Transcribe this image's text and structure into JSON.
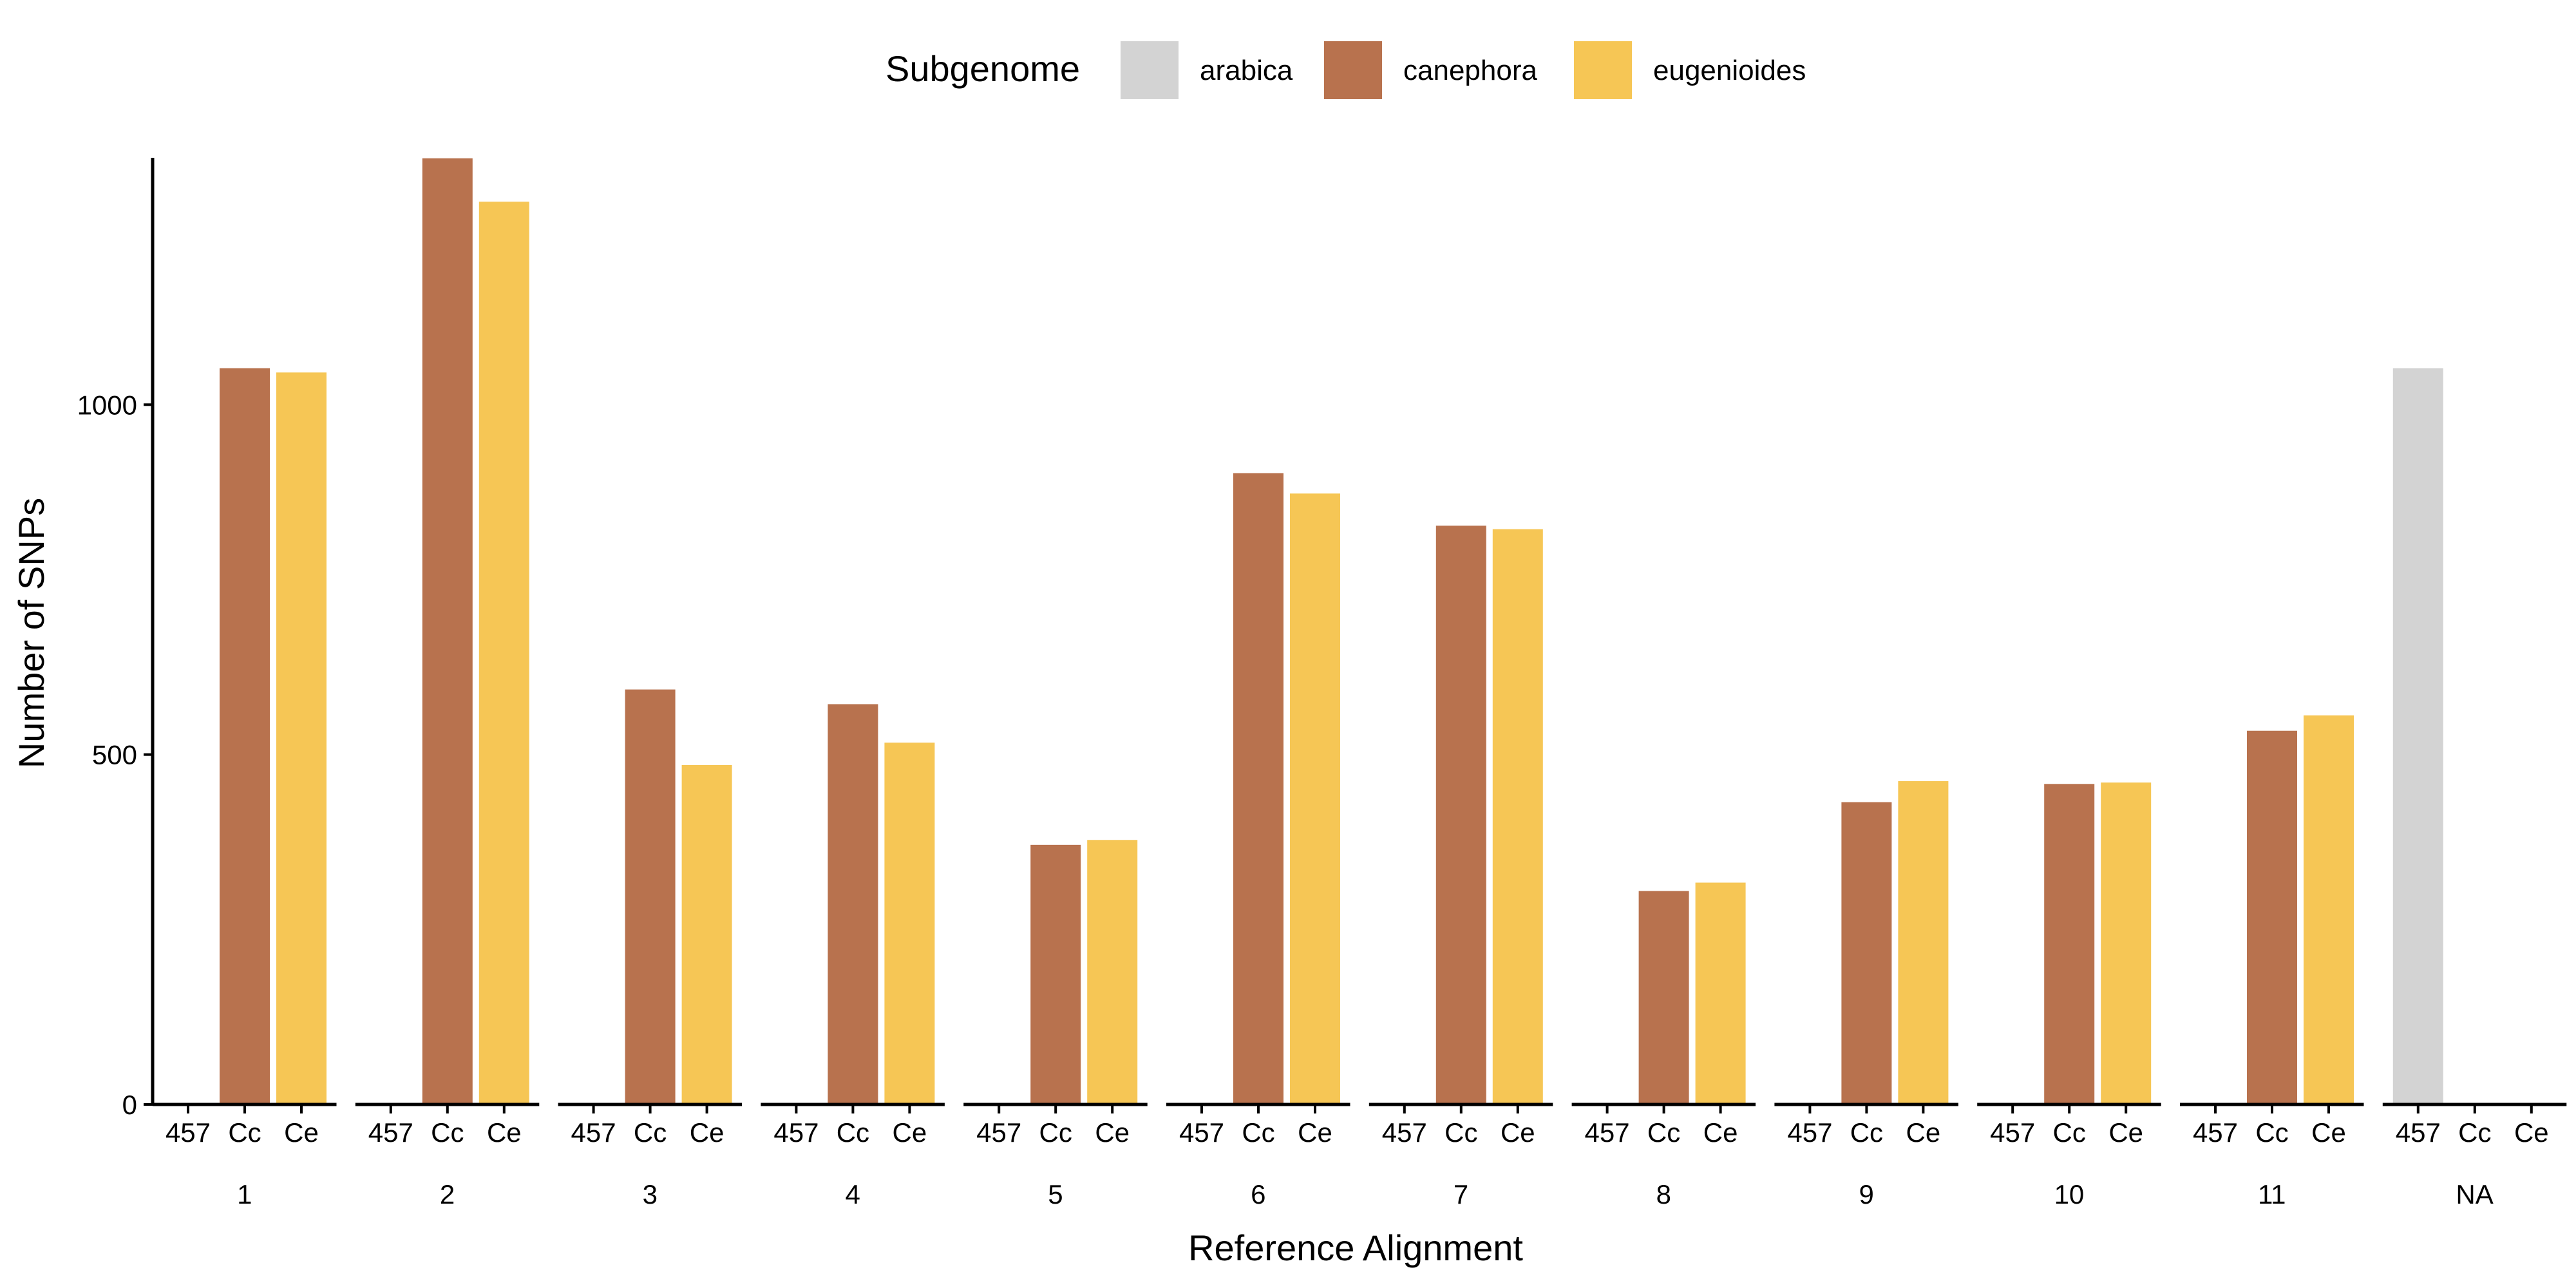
{
  "chart_data": {
    "type": "bar",
    "title": "",
    "xlabel": "Reference Alignment",
    "ylabel": "Number of SNPs",
    "ylim": [
      0,
      1350
    ],
    "yticks": [
      0,
      500,
      1000
    ],
    "grid": false,
    "legend": {
      "title": "Subgenome",
      "position": "top",
      "entries": [
        {
          "label": "arabica",
          "color": "#d3d3d3"
        },
        {
          "label": "canephora",
          "color": "#b8724e"
        },
        {
          "label": "eugenioides",
          "color": "#f6c655"
        }
      ]
    },
    "sub_categories": [
      "457",
      "Cc",
      "Ce"
    ],
    "groups": [
      {
        "label": "1",
        "values": [
          0,
          1052,
          1046
        ],
        "subgenomes": [
          "arabica",
          "canephora",
          "eugenioides"
        ]
      },
      {
        "label": "2",
        "values": [
          0,
          1352,
          1290
        ],
        "subgenomes": [
          "arabica",
          "canephora",
          "eugenioides"
        ]
      },
      {
        "label": "3",
        "values": [
          0,
          593,
          485
        ],
        "subgenomes": [
          "arabica",
          "canephora",
          "eugenioides"
        ]
      },
      {
        "label": "4",
        "values": [
          0,
          572,
          517
        ],
        "subgenomes": [
          "arabica",
          "canephora",
          "eugenioides"
        ]
      },
      {
        "label": "5",
        "values": [
          0,
          371,
          378
        ],
        "subgenomes": [
          "arabica",
          "canephora",
          "eugenioides"
        ]
      },
      {
        "label": "6",
        "values": [
          0,
          902,
          873
        ],
        "subgenomes": [
          "arabica",
          "canephora",
          "eugenioides"
        ]
      },
      {
        "label": "7",
        "values": [
          0,
          827,
          822
        ],
        "subgenomes": [
          "arabica",
          "canephora",
          "eugenioides"
        ]
      },
      {
        "label": "8",
        "values": [
          0,
          305,
          317
        ],
        "subgenomes": [
          "arabica",
          "canephora",
          "eugenioides"
        ]
      },
      {
        "label": "9",
        "values": [
          0,
          432,
          462
        ],
        "subgenomes": [
          "arabica",
          "canephora",
          "eugenioides"
        ]
      },
      {
        "label": "10",
        "values": [
          0,
          458,
          460
        ],
        "subgenomes": [
          "arabica",
          "canephora",
          "eugenioides"
        ]
      },
      {
        "label": "11",
        "values": [
          0,
          534,
          556
        ],
        "subgenomes": [
          "arabica",
          "canephora",
          "eugenioides"
        ]
      },
      {
        "label": "NA",
        "values": [
          1052,
          0,
          0
        ],
        "subgenomes": [
          "arabica",
          "canephora",
          "eugenioides"
        ]
      }
    ]
  }
}
